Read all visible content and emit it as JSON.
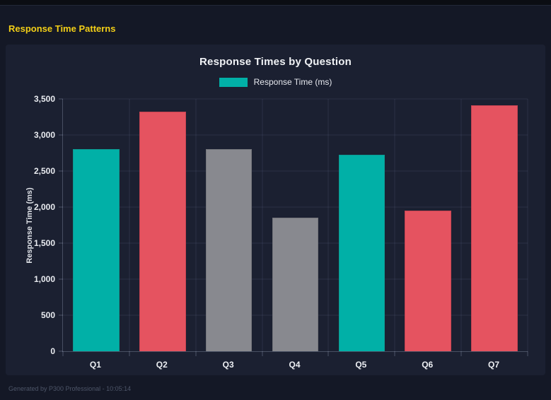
{
  "page": {
    "header_title": "Response Time Patterns",
    "footer": "Generated by P300 Professional - 10:05:14"
  },
  "colors": {
    "accent_yellow": "#f3cf17",
    "teal": "#01b0a7",
    "red": "#e55360",
    "gray": "#88898f",
    "page_bg": "#141826",
    "panel_bg": "#1b2031",
    "top_bar": "#0b0d13"
  },
  "chart_data": {
    "type": "bar",
    "title": "Response Times by Question",
    "legend": [
      {
        "label": "Response Time (ms)",
        "color": "#01b0a7"
      }
    ],
    "legend_position": "top",
    "categories": [
      "Q1",
      "Q2",
      "Q3",
      "Q4",
      "Q5",
      "Q6",
      "Q7"
    ],
    "values": [
      2800,
      3325,
      2800,
      1850,
      2725,
      1950,
      3410
    ],
    "bar_colors": [
      "#01b0a7",
      "#e55360",
      "#88898f",
      "#88898f",
      "#01b0a7",
      "#e55360",
      "#e55360"
    ],
    "bar_border_colors": [
      "#0d9a92",
      "#c74452",
      "#75767c",
      "#75767c",
      "#0d9a92",
      "#c74452",
      "#c74452"
    ],
    "xlabel": "",
    "ylabel": "Response Time (ms)",
    "ylim": [
      0,
      3500
    ],
    "ytick_step": 500,
    "ytick_labels": [
      "0",
      "500",
      "1,000",
      "1,500",
      "2,000",
      "2,500",
      "3,000",
      "3,500"
    ],
    "grid": true
  }
}
